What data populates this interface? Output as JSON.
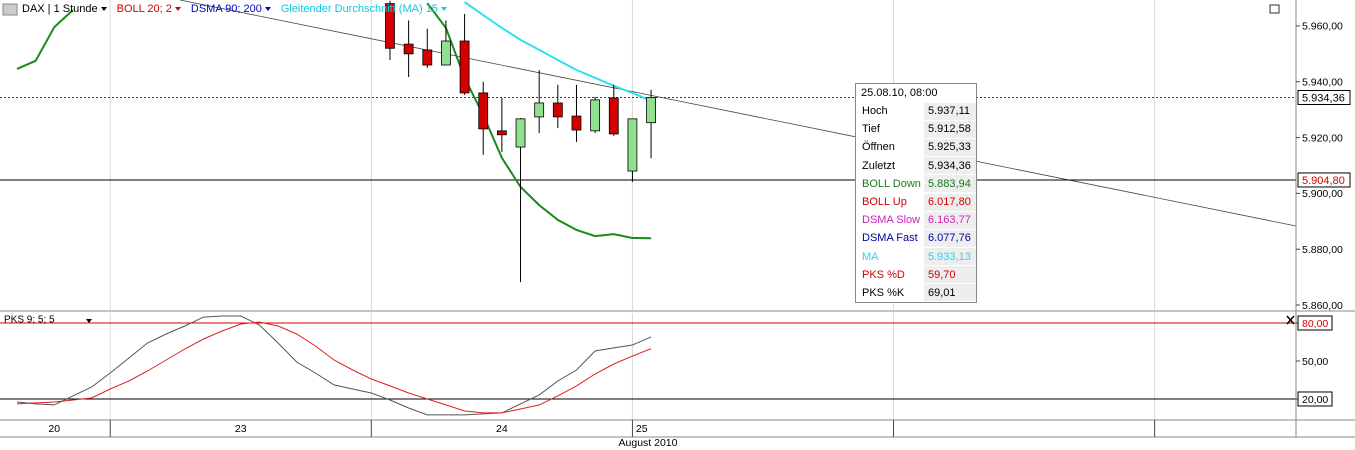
{
  "toolbar": {
    "symbol": "DAX | 1 Stunde",
    "indicators": [
      {
        "text": "BOLL 20; 2",
        "color": "#d00000"
      },
      {
        "text": "DSMA 90; 200",
        "color": "#0000c0"
      },
      {
        "text": "Gleitender Durchschnitt (MA) 15",
        "color": "#10c8e0"
      }
    ]
  },
  "chart_data": [
    {
      "type": "candlestick",
      "x": [
        0,
        1,
        2,
        3,
        4,
        5,
        6,
        7,
        8,
        9,
        10,
        11,
        12,
        13,
        14,
        15,
        16,
        17,
        18,
        19,
        20,
        21,
        22,
        23,
        24,
        25,
        26,
        27,
        28,
        29,
        30,
        31,
        32,
        33,
        34
      ],
      "series": [
        {
          "name": "BOLL Down",
          "color": "#1a8a1a",
          "values": [
            5944.6,
            5947.5,
            5959.6,
            5965.7,
            null,
            null,
            null,
            null,
            null,
            null,
            null,
            null,
            null,
            null,
            null,
            null,
            null,
            null,
            null,
            null,
            null,
            null,
            5968.2,
            5959.3,
            5941.4,
            5928.1,
            5912.7,
            5902.3,
            5895.8,
            5890.5,
            5886.9,
            5884.7,
            5885.4,
            5884.0,
            5883.94
          ]
        },
        {
          "name": "MA",
          "color": "#30e0f0",
          "values": [
            null,
            null,
            null,
            null,
            null,
            null,
            null,
            null,
            null,
            null,
            null,
            null,
            null,
            null,
            null,
            null,
            null,
            null,
            null,
            null,
            null,
            null,
            null,
            null,
            5968.6,
            5963.9,
            5959.3,
            5955.0,
            5951.4,
            5947.8,
            5944.2,
            5941.4,
            5938.5,
            5936.0,
            5933.13
          ]
        }
      ],
      "candles": {
        "x": [
          20,
          21,
          22,
          23,
          24,
          25,
          26,
          27,
          28,
          29,
          30,
          31,
          32,
          33,
          34
        ],
        "open": [
          5968,
          5953.5,
          5951.4,
          5946,
          5954.6,
          5936,
          5922.4,
          5916.6,
          5927.4,
          5932.4,
          5927.7,
          5922.4,
          5934.2,
          5908,
          5925.33
        ],
        "high": [
          5969,
          5962,
          5959,
          5962,
          5964.3,
          5940,
          5934.2,
          5927,
          5944.2,
          5938.9,
          5938.9,
          5934.6,
          5938.9,
          5926.7,
          5937.11
        ],
        "low": [
          5947.8,
          5941.7,
          5945,
          5946,
          5935.3,
          5913.8,
          5914.8,
          5868.2,
          5921.6,
          5923.4,
          5918.4,
          5921.6,
          5920.6,
          5904.1,
          5912.58
        ],
        "close": [
          5952,
          5950,
          5946,
          5954.6,
          5936,
          5923.1,
          5921,
          5926.7,
          5932.4,
          5927.4,
          5922.7,
          5933.5,
          5921.3,
          5926.7,
          5934.36
        ],
        "up_color": "#90e090",
        "down_color": "#d40000"
      },
      "xlim": [
        -0.91,
        68.58
      ],
      "ylim": [
        5858.2,
        5969.3
      ],
      "yticks": [
        {
          "value": 5860,
          "label": "5.860,00"
        },
        {
          "value": 5880,
          "label": "5.880,00"
        },
        {
          "value": 5900,
          "label": "5.900,00"
        },
        {
          "value": 5920,
          "label": "5.920,00"
        },
        {
          "value": 5940,
          "label": "5.940,00"
        },
        {
          "value": 5960,
          "label": "5.960,00"
        }
      ],
      "xgrid": [
        5,
        19,
        33,
        47,
        61
      ],
      "xticks": [
        {
          "value": 2,
          "label": "20"
        },
        {
          "value": 12,
          "label": "23"
        },
        {
          "value": 26,
          "label": "24"
        },
        {
          "value": 33.5,
          "label": "25"
        }
      ],
      "xlabel": "August 2010",
      "grid": true,
      "hlines": [
        {
          "value": 5934.36,
          "label": "5.934,36",
          "color": "#c00000",
          "label_color": "#000000",
          "dashed": true
        },
        {
          "value": 5904.8,
          "label": "5.904,80",
          "color": "#000000",
          "label_color": "#d00000",
          "dashed": false
        }
      ]
    },
    {
      "type": "line",
      "title": "PKS 9; 5; 5",
      "x": [
        0,
        1,
        2,
        3,
        4,
        5,
        6,
        7,
        8,
        9,
        10,
        11,
        12,
        13,
        14,
        15,
        16,
        17,
        18,
        19,
        20,
        21,
        22,
        23,
        24,
        25,
        26,
        27,
        28,
        29,
        30,
        31,
        32,
        33,
        34
      ],
      "series": [
        {
          "name": "PKS %K",
          "color": "#555555",
          "values": [
            17.6,
            16.1,
            15.3,
            22.4,
            29.5,
            40.5,
            52.4,
            64.2,
            71.3,
            77.6,
            84.7,
            85.5,
            85.5,
            78.4,
            64.2,
            49.2,
            40.5,
            31.1,
            27.9,
            24.7,
            19.2,
            12.9,
            7.4,
            7.4,
            7.4,
            8.2,
            9.0,
            16.1,
            23.2,
            34.2,
            42.9,
            57.9,
            60.3,
            62.6,
            69.01
          ]
        },
        {
          "name": "PKS %D",
          "color": "#e02020",
          "values": [
            16.1,
            16.9,
            17.6,
            19.2,
            20.8,
            27.9,
            34.2,
            42.1,
            50.8,
            59.5,
            67.4,
            73.7,
            79.2,
            80.8,
            77.6,
            71.3,
            61.8,
            50.8,
            42.9,
            35.8,
            30.3,
            24.7,
            20.0,
            15.3,
            10.5,
            9.0,
            9.0,
            12.1,
            15.3,
            22.4,
            30.3,
            39.7,
            47.6,
            53.9,
            59.7
          ]
        }
      ],
      "xlim": [
        -0.91,
        68.58
      ],
      "ylim": [
        3.4,
        87.9
      ],
      "yticks": [
        {
          "value": 20,
          "label": "20,00"
        },
        {
          "value": 50,
          "label": "50,00"
        },
        {
          "value": 80,
          "label": "80,00"
        }
      ],
      "xgrid": [
        5,
        19,
        33,
        47,
        61
      ],
      "grid": true,
      "hlines": [
        {
          "value": 80,
          "color": "#d00000"
        },
        {
          "value": 20,
          "color": "#000000"
        }
      ]
    }
  ],
  "tooltip": {
    "title": "25.08.10, 08:00",
    "rows": [
      {
        "label": "Hoch",
        "value": "5.937,11",
        "color": "#000000"
      },
      {
        "label": "Tief",
        "value": "5.912,58",
        "color": "#000000"
      },
      {
        "label": "Öffnen",
        "value": "5.925,33",
        "color": "#000000"
      },
      {
        "label": "Zuletzt",
        "value": "5.934,36",
        "color": "#000000"
      },
      {
        "label": "BOLL Down",
        "value": "5.883,94",
        "color": "#1a7a1a"
      },
      {
        "label": "BOLL Up",
        "value": "6.017,80",
        "color": "#d00000"
      },
      {
        "label": "DSMA Slow",
        "value": "6.163,77",
        "color": "#d020c0"
      },
      {
        "label": "DSMA Fast",
        "value": "6.077,76",
        "color": "#0000a0"
      },
      {
        "label": "MA",
        "value": "5.933,13",
        "color": "#30d0f0"
      },
      {
        "label": "PKS %D",
        "value": "59,70",
        "color": "#d00000"
      },
      {
        "label": "PKS %K",
        "value": "69,01",
        "color": "#000000"
      }
    ]
  }
}
